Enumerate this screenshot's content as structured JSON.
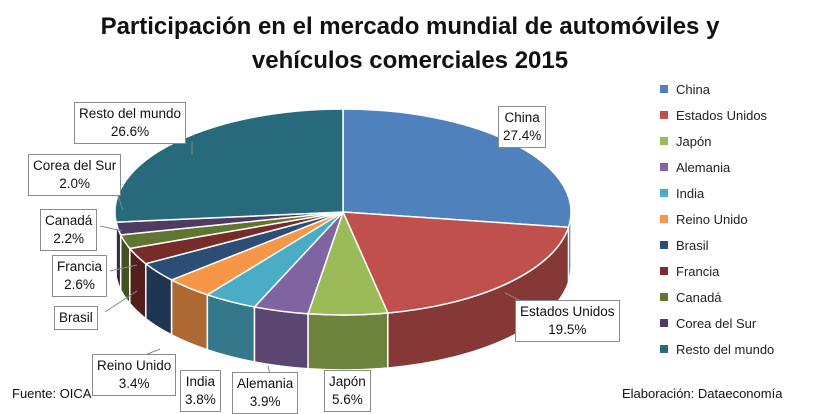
{
  "title": "Participación en el mercado mundial de automóviles y\nvehículos comerciales 2015",
  "source_note": "Fuente: OICA",
  "credit_note": "Elaboración: Dataeconomía",
  "chart_data": {
    "type": "pie",
    "title": "Participación en el mercado mundial de automóviles y vehículos comerciales 2015",
    "legend_position": "right",
    "three_d": true,
    "unit": "%",
    "slices": [
      {
        "name": "China",
        "value": 27.4,
        "label": "27.4%",
        "color": "#4F81BD"
      },
      {
        "name": "Estados Unidos",
        "value": 19.5,
        "label": "19.5%",
        "color": "#C0504D"
      },
      {
        "name": "Japón",
        "value": 5.6,
        "label": "5.6%",
        "color": "#9BBB59"
      },
      {
        "name": "Alemania",
        "value": 3.9,
        "label": "3.9%",
        "color": "#8064A2"
      },
      {
        "name": "India",
        "value": 3.8,
        "label": "3.8%",
        "color": "#4BACC6"
      },
      {
        "name": "Reino Unido",
        "value": 3.4,
        "label": "3.4%",
        "color": "#F79646"
      },
      {
        "name": "Brasil",
        "value": 3.1,
        "label": "",
        "color": "#2C4D75"
      },
      {
        "name": "Francia",
        "value": 2.6,
        "label": "2.6%",
        "color": "#772C2A"
      },
      {
        "name": "Canadá",
        "value": 2.2,
        "label": "2.2%",
        "color": "#5F7530"
      },
      {
        "name": "Corea del Sur",
        "value": 2.0,
        "label": "2.0%",
        "color": "#4D3B62"
      },
      {
        "name": "Resto del mundo",
        "value": 26.6,
        "label": "26.6%",
        "color": "#276A7C"
      }
    ]
  }
}
